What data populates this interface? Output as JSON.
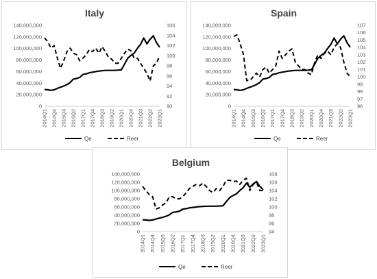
{
  "chart_data": [
    {
      "type": "line",
      "title": "Italy",
      "x": [
        "2014Q1",
        "2014Q2",
        "2014Q3",
        "2014Q4",
        "2015Q1",
        "2015Q2",
        "2015Q3",
        "2015Q4",
        "2016Q1",
        "2016Q2",
        "2016Q3",
        "2016Q4",
        "2017Q1",
        "2017Q2",
        "2017Q3",
        "2017Q4",
        "2018Q1",
        "2018Q2",
        "2018Q3",
        "2018Q4",
        "2019Q1",
        "2019Q2",
        "2019Q3",
        "2019Q4",
        "2020Q1",
        "2020Q2",
        "2020Q3",
        "2020Q4",
        "2021Q1",
        "2021Q2",
        "2021Q3",
        "2021Q4",
        "2022Q1",
        "2022Q2",
        "2022Q3",
        "2022Q4",
        "2023Q1"
      ],
      "x_tick_labels": [
        "2014Q1",
        "2014Q4",
        "2015Q3",
        "2016Q2",
        "2017Q1",
        "2017Q4",
        "2018Q3",
        "2019Q2",
        "2020Q1",
        "2020Q4",
        "2021Q3",
        "2022Q2",
        "2023Q1"
      ],
      "series": [
        {
          "name": "Qe",
          "axis": "left",
          "style": "solid",
          "values": [
            29000000,
            28500000,
            27500000,
            28500000,
            31000000,
            33000000,
            35000000,
            37500000,
            41000000,
            47000000,
            48000000,
            50000000,
            55000000,
            56000000,
            58000000,
            59000000,
            60000000,
            61000000,
            61500000,
            62000000,
            62000000,
            62000000,
            62000000,
            62500000,
            63000000,
            73000000,
            83000000,
            88000000,
            92000000,
            100000000,
            107000000,
            118000000,
            108000000,
            116000000,
            122000000,
            110000000,
            102000000
          ]
        },
        {
          "name": "Reer",
          "axis": "right",
          "style": "dashed",
          "values": [
            103.5,
            102.8,
            101.5,
            102.0,
            99.5,
            97.5,
            99.0,
            100.8,
            101.5,
            100.5,
            100.2,
            99.0,
            99.5,
            100.2,
            101.2,
            100.8,
            101.5,
            100.5,
            101.8,
            100.8,
            99.7,
            99.3,
            98.5,
            98.5,
            99.5,
            100.5,
            101.3,
            101.0,
            99.5,
            99.5,
            98.5,
            97.5,
            96.5,
            95.0,
            98.0,
            98.5,
            100.0
          ]
        }
      ],
      "y_left": {
        "min": 0,
        "max": 140000000,
        "step": 20000000,
        "tick_labels": [
          "0",
          "20,000,000",
          "40,000,000",
          "60,000,000",
          "80,000,000",
          "100,000,000",
          "120,000,000",
          "140,000,000"
        ]
      },
      "y_right": {
        "min": 90,
        "max": 106,
        "step": 2,
        "tick_labels": [
          "90",
          "92",
          "94",
          "96",
          "98",
          "100",
          "102",
          "104",
          "106"
        ]
      },
      "legend": {
        "position": "bottom",
        "entries": [
          "Qe",
          "Reer"
        ]
      },
      "grid": false
    },
    {
      "type": "line",
      "title": "Spain",
      "x": [
        "2014Q1",
        "2014Q2",
        "2014Q3",
        "2014Q4",
        "2015Q1",
        "2015Q2",
        "2015Q3",
        "2015Q4",
        "2016Q1",
        "2016Q2",
        "2016Q3",
        "2016Q4",
        "2017Q1",
        "2017Q2",
        "2017Q3",
        "2017Q4",
        "2018Q1",
        "2018Q2",
        "2018Q3",
        "2018Q4",
        "2019Q1",
        "2019Q2",
        "2019Q3",
        "2019Q4",
        "2020Q1",
        "2020Q2",
        "2020Q3",
        "2020Q4",
        "2021Q1",
        "2021Q2",
        "2021Q3",
        "2021Q4",
        "2022Q1",
        "2022Q2",
        "2022Q3",
        "2022Q4",
        "2023Q1"
      ],
      "x_tick_labels": [
        "2014Q1",
        "2014Q4",
        "2015Q3",
        "2016Q2",
        "2017Q1",
        "2017Q4",
        "2018Q3",
        "2019Q2",
        "2020Q1",
        "2020Q4",
        "2021Q3",
        "2022Q2",
        "2023Q1"
      ],
      "series": [
        {
          "name": "Qe",
          "axis": "left",
          "style": "solid",
          "values": [
            29000000,
            28500000,
            27500000,
            28500000,
            31000000,
            33000000,
            35000000,
            37500000,
            41000000,
            47000000,
            48000000,
            50000000,
            55000000,
            56000000,
            58000000,
            59000000,
            60000000,
            61000000,
            61500000,
            62000000,
            62000000,
            62000000,
            62000000,
            62500000,
            63000000,
            73000000,
            83000000,
            88000000,
            92000000,
            100000000,
            107000000,
            118000000,
            108000000,
            116000000,
            122000000,
            110000000,
            102000000
          ]
        },
        {
          "name": "Reer",
          "axis": "right",
          "style": "dashed",
          "values": [
            105.5,
            105.7,
            104.5,
            103.0,
            99.5,
            99.5,
            100.0,
            100.5,
            100.0,
            101.0,
            101.3,
            100.5,
            101.0,
            101.5,
            103.5,
            102.5,
            103.0,
            103.5,
            103.8,
            102.0,
            101.5,
            101.0,
            101.0,
            100.5,
            100.3,
            102.0,
            103.0,
            102.5,
            103.2,
            103.5,
            103.0,
            104.0,
            104.5,
            104.0,
            102.0,
            100.5,
            100.0
          ]
        }
      ],
      "y_left": {
        "min": 0,
        "max": 140000000,
        "step": 20000000,
        "tick_labels": [
          "0",
          "20,000,000",
          "40,000,000",
          "60,000,000",
          "80,000,000",
          "100,000,000",
          "120,000,000",
          "140,000,000"
        ]
      },
      "y_right": {
        "min": 96,
        "max": 107,
        "step": 1,
        "tick_labels": [
          "96",
          "97",
          "98",
          "99",
          "100",
          "101",
          "102",
          "103",
          "104",
          "105",
          "106",
          "107"
        ]
      },
      "legend": {
        "position": "bottom",
        "entries": [
          "Qe",
          "Reer"
        ]
      },
      "grid": false
    },
    {
      "type": "line",
      "title": "Belgium",
      "x": [
        "2014Q1",
        "2014Q2",
        "2014Q3",
        "2014Q4",
        "2015Q1",
        "2015Q2",
        "2015Q3",
        "2015Q4",
        "2016Q1",
        "2016Q2",
        "2016Q3",
        "2016Q4",
        "2017Q1",
        "2017Q2",
        "2017Q3",
        "2017Q4",
        "2018Q1",
        "2018Q2",
        "2018Q3",
        "2018Q4",
        "2019Q1",
        "2019Q2",
        "2019Q3",
        "2019Q4",
        "2020Q1",
        "2020Q2",
        "2020Q3",
        "2020Q4",
        "2021Q1",
        "2021Q2",
        "2021Q3",
        "2021Q4",
        "2022Q1",
        "2022Q2",
        "2022Q3",
        "2022Q4",
        "2023Q1"
      ],
      "x_tick_labels": [
        "2014Q1",
        "2014Q4",
        "2015Q3",
        "2016Q2",
        "2017Q1",
        "2017Q4",
        "2018Q3",
        "2019Q2",
        "2020Q1",
        "2020Q4",
        "2021Q3",
        "2022Q2",
        "2023Q1"
      ],
      "series": [
        {
          "name": "Qe",
          "axis": "left",
          "style": "solid",
          "values": [
            29000000,
            28500000,
            27500000,
            28500000,
            31000000,
            33000000,
            35000000,
            37500000,
            41000000,
            47000000,
            48000000,
            50000000,
            55000000,
            56000000,
            58000000,
            59000000,
            60000000,
            61000000,
            61500000,
            62000000,
            62000000,
            62000000,
            62000000,
            62500000,
            63000000,
            73000000,
            83000000,
            88000000,
            92000000,
            100000000,
            107000000,
            118000000,
            108000000,
            116000000,
            122000000,
            110000000,
            102000000
          ]
        },
        {
          "name": "Reer",
          "axis": "right",
          "style": "dashed",
          "values": [
            105.0,
            104.0,
            103.0,
            102.5,
            99.5,
            99.8,
            100.5,
            101.0,
            102.5,
            102.5,
            102.0,
            102.0,
            102.5,
            103.5,
            104.5,
            105.0,
            105.5,
            105.2,
            105.8,
            105.0,
            104.0,
            103.5,
            104.5,
            104.0,
            105.0,
            106.5,
            106.5,
            106.2,
            106.3,
            105.5,
            106.5,
            107.0,
            104.0,
            105.5,
            106.0,
            104.0,
            104.0
          ]
        }
      ],
      "y_left": {
        "min": 0,
        "max": 140000000,
        "step": 20000000,
        "tick_labels": [
          "0",
          "20,000,000",
          "40,000,000",
          "60,000,000",
          "80,000,000",
          "100,000,000",
          "120,000,000",
          "140,000,000"
        ]
      },
      "y_right": {
        "min": 94,
        "max": 108,
        "step": 2,
        "tick_labels": [
          "94",
          "96",
          "98",
          "100",
          "102",
          "104",
          "106",
          "108"
        ]
      },
      "legend": {
        "position": "bottom",
        "entries": [
          "Qe",
          "Reer"
        ]
      },
      "grid": false
    }
  ]
}
